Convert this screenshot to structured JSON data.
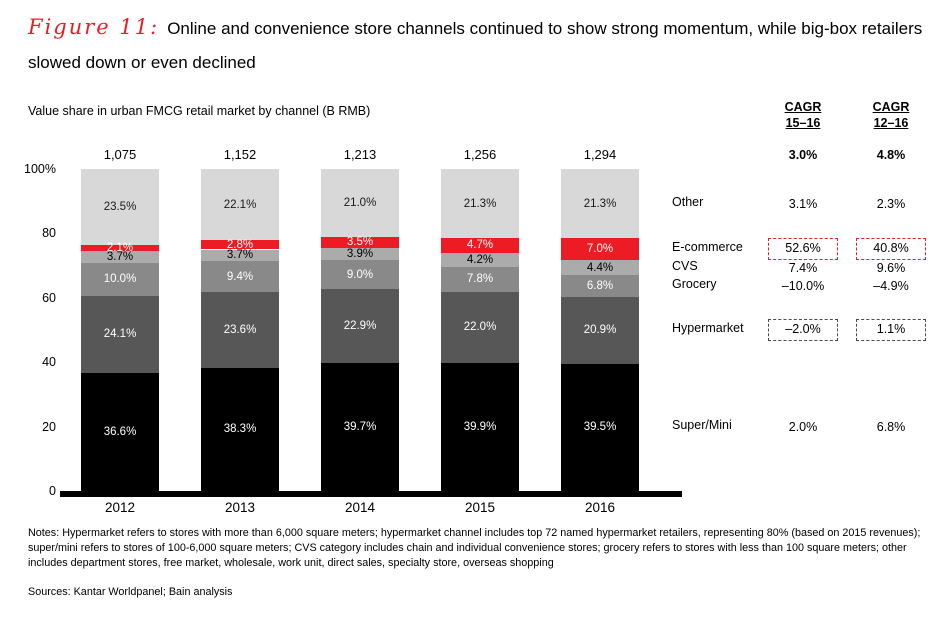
{
  "header": {
    "figure_label": "Figure 11:",
    "title": "Online and convenience store channels continued to show strong momentum, while big-box retailers slowed down or even declined",
    "subtitle": "Value share in urban FMCG retail market by channel (B RMB)"
  },
  "colors": {
    "accent_red": "#ed1c24"
  },
  "chart_data": {
    "type": "bar",
    "stacked": true,
    "title": "Value share in urban FMCG retail market by channel (B RMB)",
    "categories": [
      "2012",
      "2013",
      "2014",
      "2015",
      "2016"
    ],
    "bar_totals_b_rmb": [
      "1,075",
      "1,152",
      "1,213",
      "1,256",
      "1,294"
    ],
    "xlabel": "",
    "ylabel": "",
    "ylim": [
      0,
      100
    ],
    "grid": false,
    "legend_position": "right-of-last-bar",
    "yticks": [
      {
        "value": 0,
        "label": "0"
      },
      {
        "value": 20,
        "label": "20"
      },
      {
        "value": 40,
        "label": "40"
      },
      {
        "value": 60,
        "label": "60"
      },
      {
        "value": 80,
        "label": "80"
      },
      {
        "value": 100,
        "label": "100%"
      }
    ],
    "series": [
      {
        "name": "Super/Mini",
        "color": "#000000",
        "label_color": "#ffffff",
        "values": [
          36.6,
          38.3,
          39.7,
          39.9,
          39.5
        ]
      },
      {
        "name": "Hypermarket",
        "color": "#575757",
        "label_color": "#ffffff",
        "values": [
          24.1,
          23.6,
          22.9,
          22.0,
          20.9
        ]
      },
      {
        "name": "Grocery",
        "color": "#898989",
        "label_color": "#ffffff",
        "values": [
          10.0,
          9.4,
          9.0,
          7.8,
          6.8
        ]
      },
      {
        "name": "CVS",
        "color": "#ababab",
        "label_color": "#000000",
        "values": [
          3.7,
          3.7,
          3.9,
          4.2,
          4.4
        ]
      },
      {
        "name": "E-commerce",
        "color": "#ed1c24",
        "label_color": "#ffffff",
        "values": [
          2.1,
          2.8,
          3.5,
          4.7,
          7.0
        ]
      },
      {
        "name": "Other",
        "color": "#d8d8d8",
        "label_color": "#1a1a1a",
        "values": [
          23.5,
          22.1,
          21.0,
          21.3,
          21.3
        ]
      }
    ]
  },
  "cagr": {
    "columns": [
      {
        "line1": "CAGR",
        "line2": "15–16"
      },
      {
        "line1": "CAGR",
        "line2": "12–16"
      }
    ],
    "total": {
      "cagr_15_16": "3.0%",
      "cagr_12_16": "4.8%"
    },
    "rows": [
      {
        "channel": "Other",
        "cagr_15_16": "3.1%",
        "cagr_12_16": "2.3%",
        "highlight": null
      },
      {
        "channel": "E-commerce",
        "cagr_15_16": "52.6%",
        "cagr_12_16": "40.8%",
        "highlight": "red"
      },
      {
        "channel": "CVS",
        "cagr_15_16": "7.4%",
        "cagr_12_16": "9.6%",
        "highlight": null
      },
      {
        "channel": "Grocery",
        "cagr_15_16": "–10.0%",
        "cagr_12_16": "–4.9%",
        "highlight": null
      },
      {
        "channel": "Hypermarket",
        "cagr_15_16": "–2.0%",
        "cagr_12_16": "1.1%",
        "highlight": "dark"
      },
      {
        "channel": "Super/Mini",
        "cagr_15_16": "2.0%",
        "cagr_12_16": "6.8%",
        "highlight": null
      }
    ]
  },
  "footer": {
    "notes": "Notes: Hypermarket refers to stores with more than 6,000 square meters; hypermarket channel includes top 72 named hypermarket retailers, representing 80% (based on 2015 revenues); super/mini refers to stores of 100-6,000 square meters; CVS category includes chain and individual convenience stores; grocery refers to stores with less than 100 square meters; other includes department stores, free market, wholesale, work unit, direct sales, specialty store, overseas shopping",
    "sources": "Sources: Kantar Worldpanel; Bain analysis"
  }
}
